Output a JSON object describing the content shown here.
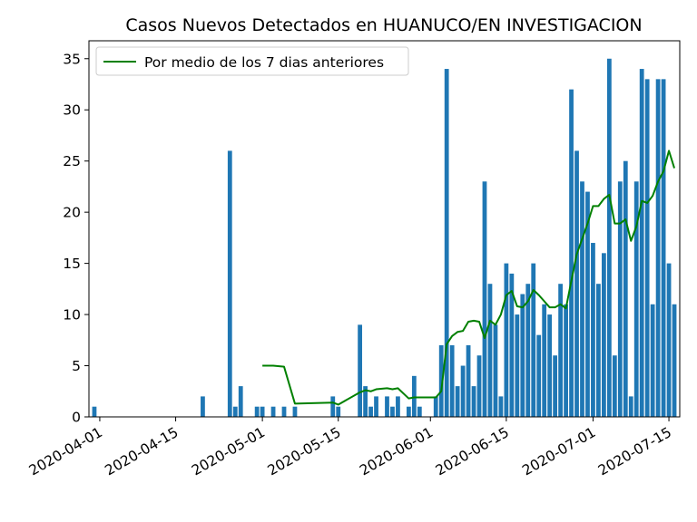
{
  "chart_data": {
    "type": "bar",
    "title": "Casos Nuevos Detectados en HUANUCO/EN INVESTIGACION",
    "xlabel": "",
    "ylabel": "",
    "ylim": [
      0,
      36.75
    ],
    "yticks": [
      0,
      5,
      10,
      15,
      20,
      25,
      30,
      35
    ],
    "xticks": [
      "2020-04-01",
      "2020-04-15",
      "2020-05-01",
      "2020-05-15",
      "2020-06-01",
      "2020-06-15",
      "2020-07-01",
      "2020-07-15"
    ],
    "grid": false,
    "legend_position": "top-left",
    "colors": {
      "bars": "#1f77b4",
      "line": "#008000"
    },
    "series": [
      {
        "kind": "bar",
        "points": [
          [
            "2020-03-31",
            1
          ],
          [
            "2020-04-20",
            2
          ],
          [
            "2020-04-25",
            26
          ],
          [
            "2020-04-26",
            1
          ],
          [
            "2020-04-27",
            3
          ],
          [
            "2020-04-30",
            1
          ],
          [
            "2020-05-01",
            1
          ],
          [
            "2020-05-03",
            1
          ],
          [
            "2020-05-05",
            1
          ],
          [
            "2020-05-07",
            1
          ],
          [
            "2020-05-14",
            2
          ],
          [
            "2020-05-15",
            1
          ],
          [
            "2020-05-19",
            9
          ],
          [
            "2020-05-20",
            3
          ],
          [
            "2020-05-21",
            1
          ],
          [
            "2020-05-22",
            2
          ],
          [
            "2020-05-24",
            2
          ],
          [
            "2020-05-25",
            1
          ],
          [
            "2020-05-26",
            2
          ],
          [
            "2020-05-28",
            1
          ],
          [
            "2020-05-29",
            4
          ],
          [
            "2020-05-30",
            1
          ],
          [
            "2020-06-02",
            2
          ],
          [
            "2020-06-03",
            7
          ],
          [
            "2020-06-04",
            34
          ],
          [
            "2020-06-05",
            7
          ],
          [
            "2020-06-06",
            3
          ],
          [
            "2020-06-07",
            5
          ],
          [
            "2020-06-08",
            7
          ],
          [
            "2020-06-09",
            3
          ],
          [
            "2020-06-10",
            6
          ],
          [
            "2020-06-11",
            23
          ],
          [
            "2020-06-12",
            13
          ],
          [
            "2020-06-13",
            9
          ],
          [
            "2020-06-14",
            2
          ],
          [
            "2020-06-15",
            15
          ],
          [
            "2020-06-16",
            14
          ],
          [
            "2020-06-17",
            10
          ],
          [
            "2020-06-18",
            12
          ],
          [
            "2020-06-19",
            13
          ],
          [
            "2020-06-20",
            15
          ],
          [
            "2020-06-21",
            8
          ],
          [
            "2020-06-22",
            11
          ],
          [
            "2020-06-23",
            10
          ],
          [
            "2020-06-24",
            6
          ],
          [
            "2020-06-25",
            13
          ],
          [
            "2020-06-26",
            11
          ],
          [
            "2020-06-27",
            32
          ],
          [
            "2020-06-28",
            26
          ],
          [
            "2020-06-29",
            23
          ],
          [
            "2020-06-30",
            22
          ],
          [
            "2020-07-01",
            17
          ],
          [
            "2020-07-02",
            13
          ],
          [
            "2020-07-03",
            16
          ],
          [
            "2020-07-04",
            35
          ],
          [
            "2020-07-05",
            6
          ],
          [
            "2020-07-06",
            23
          ],
          [
            "2020-07-07",
            25
          ],
          [
            "2020-07-08",
            2
          ],
          [
            "2020-07-09",
            23
          ],
          [
            "2020-07-10",
            34
          ],
          [
            "2020-07-11",
            33
          ],
          [
            "2020-07-12",
            11
          ],
          [
            "2020-07-13",
            33
          ],
          [
            "2020-07-14",
            33
          ],
          [
            "2020-07-15",
            15
          ],
          [
            "2020-07-16",
            11
          ]
        ]
      },
      {
        "kind": "line",
        "name": "Por medio de los 7 dias anteriores",
        "points": [
          [
            "2020-05-01",
            5.0
          ],
          [
            "2020-05-03",
            5.0
          ],
          [
            "2020-05-05",
            4.9
          ],
          [
            "2020-05-07",
            1.3
          ],
          [
            "2020-05-14",
            1.4
          ],
          [
            "2020-05-15",
            1.2
          ],
          [
            "2020-05-19",
            2.4
          ],
          [
            "2020-05-20",
            2.6
          ],
          [
            "2020-05-21",
            2.5
          ],
          [
            "2020-05-22",
            2.7
          ],
          [
            "2020-05-24",
            2.8
          ],
          [
            "2020-05-25",
            2.7
          ],
          [
            "2020-05-26",
            2.8
          ],
          [
            "2020-05-28",
            1.8
          ],
          [
            "2020-05-29",
            1.9
          ],
          [
            "2020-05-30",
            1.9
          ],
          [
            "2020-06-02",
            1.9
          ],
          [
            "2020-06-03",
            2.5
          ],
          [
            "2020-06-04",
            7.1
          ],
          [
            "2020-06-05",
            7.9
          ],
          [
            "2020-06-06",
            8.3
          ],
          [
            "2020-06-07",
            8.4
          ],
          [
            "2020-06-08",
            9.3
          ],
          [
            "2020-06-09",
            9.4
          ],
          [
            "2020-06-10",
            9.3
          ],
          [
            "2020-06-11",
            7.7
          ],
          [
            "2020-06-12",
            9.4
          ],
          [
            "2020-06-13",
            9.0
          ],
          [
            "2020-06-14",
            10.0
          ],
          [
            "2020-06-15",
            11.9
          ],
          [
            "2020-06-16",
            12.3
          ],
          [
            "2020-06-17",
            10.8
          ],
          [
            "2020-06-18",
            10.7
          ],
          [
            "2020-06-19",
            11.3
          ],
          [
            "2020-06-20",
            12.4
          ],
          [
            "2020-06-21",
            11.9
          ],
          [
            "2020-06-22",
            11.3
          ],
          [
            "2020-06-23",
            10.7
          ],
          [
            "2020-06-24",
            10.7
          ],
          [
            "2020-06-25",
            11.0
          ],
          [
            "2020-06-26",
            10.6
          ],
          [
            "2020-06-27",
            13.3
          ],
          [
            "2020-06-28",
            15.9
          ],
          [
            "2020-06-29",
            17.4
          ],
          [
            "2020-06-30",
            18.9
          ],
          [
            "2020-07-01",
            20.6
          ],
          [
            "2020-07-02",
            20.6
          ],
          [
            "2020-07-03",
            21.3
          ],
          [
            "2020-07-04",
            21.7
          ],
          [
            "2020-07-05",
            18.9
          ],
          [
            "2020-07-06",
            18.9
          ],
          [
            "2020-07-07",
            19.3
          ],
          [
            "2020-07-08",
            17.2
          ],
          [
            "2020-07-09",
            18.6
          ],
          [
            "2020-07-10",
            21.1
          ],
          [
            "2020-07-11",
            20.9
          ],
          [
            "2020-07-12",
            21.6
          ],
          [
            "2020-07-13",
            23.0
          ],
          [
            "2020-07-14",
            24.0
          ],
          [
            "2020-07-15",
            26.0
          ],
          [
            "2020-07-16",
            24.3
          ]
        ]
      }
    ]
  }
}
